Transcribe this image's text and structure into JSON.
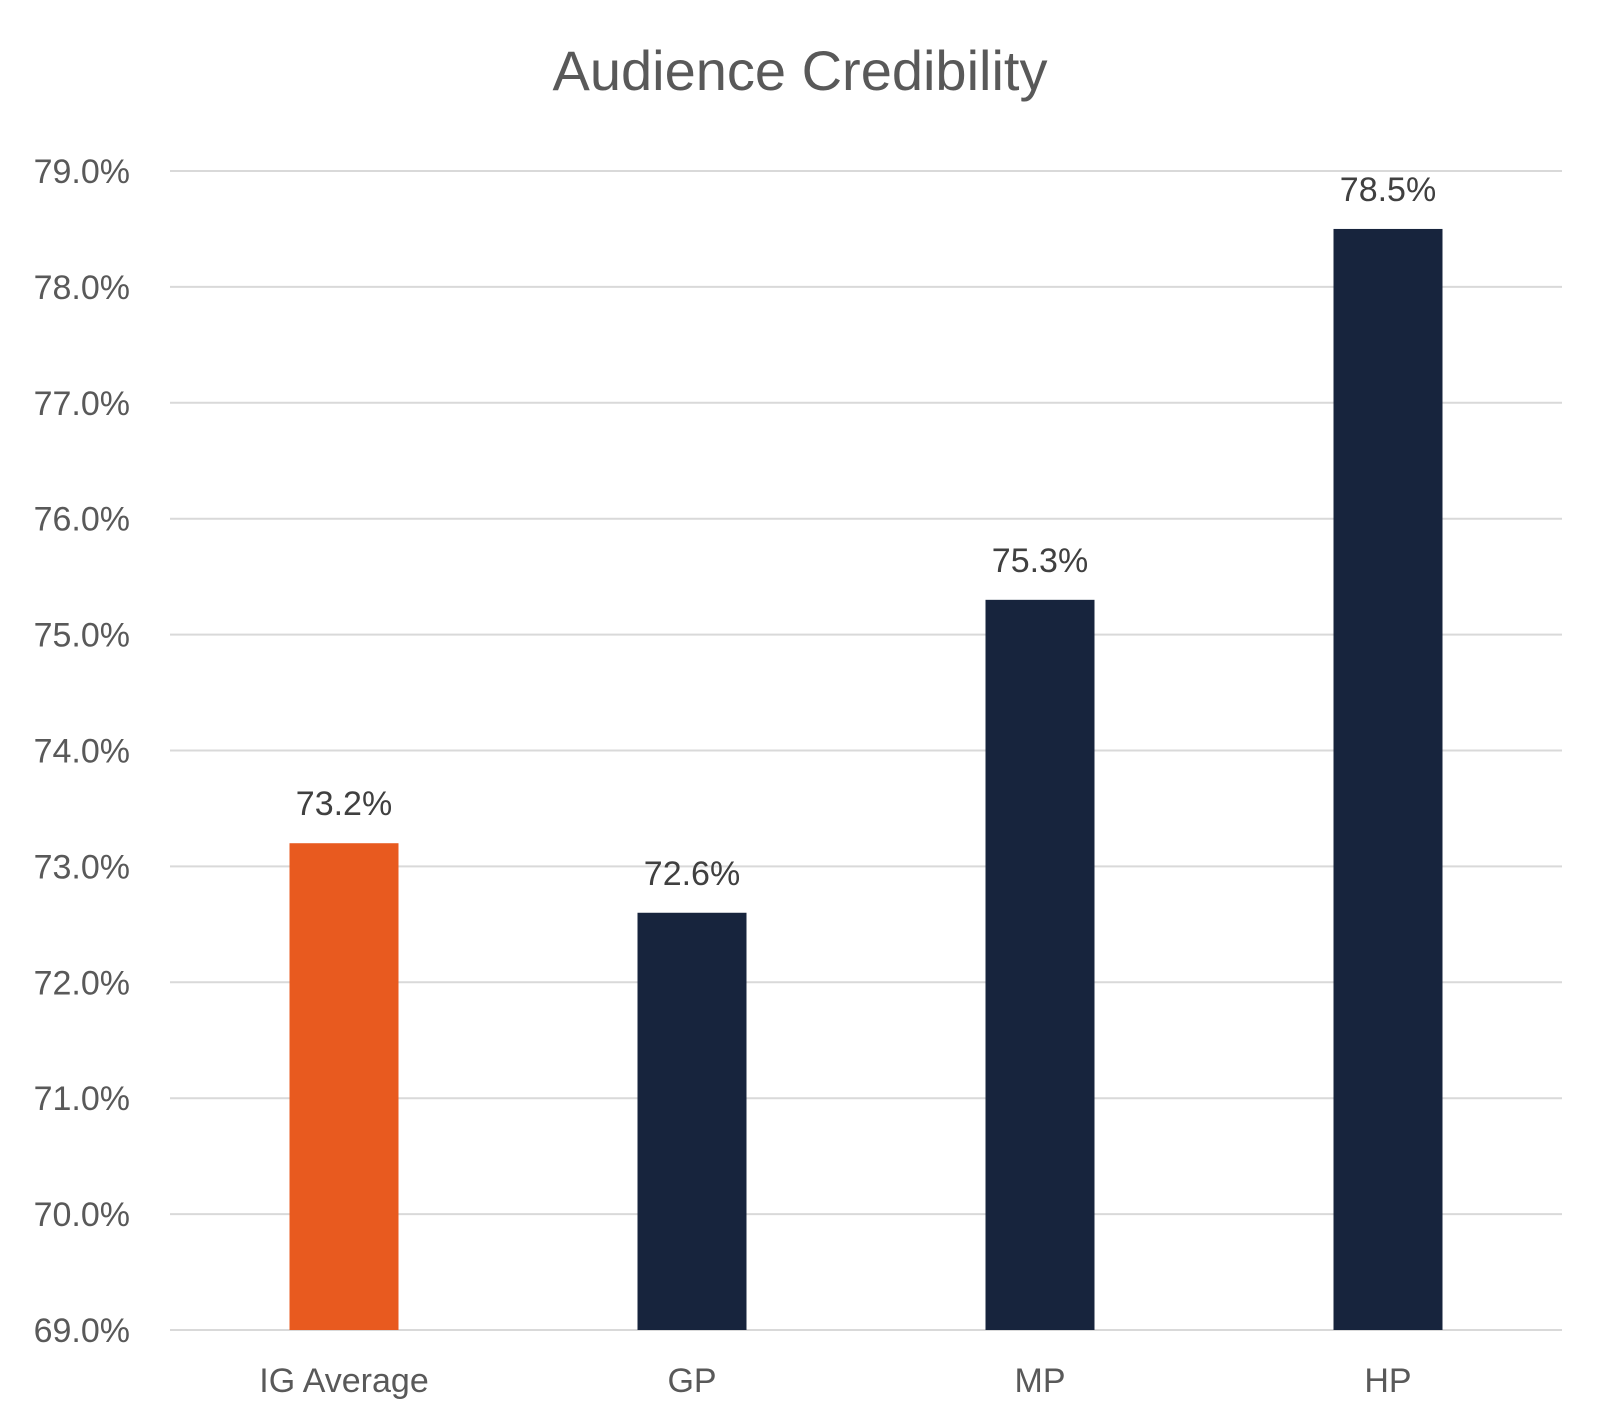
{
  "chart_data": {
    "type": "bar",
    "title": "Audience Credibility",
    "xlabel": "",
    "ylabel": "",
    "categories": [
      "IG Average",
      "GP",
      "MP",
      "HP"
    ],
    "values": [
      73.2,
      72.6,
      75.3,
      78.5
    ],
    "data_labels": [
      "73.2%",
      "72.6%",
      "75.3%",
      "78.5%"
    ],
    "bar_colors": [
      "#e85a1f",
      "#17243d",
      "#17243d",
      "#17243d"
    ],
    "ylim": [
      69.0,
      79.0
    ],
    "yticks": [
      69.0,
      70.0,
      71.0,
      72.0,
      73.0,
      74.0,
      75.0,
      76.0,
      77.0,
      78.0,
      79.0
    ],
    "ytick_labels": [
      "69.0%",
      "70.0%",
      "71.0%",
      "72.0%",
      "73.0%",
      "74.0%",
      "75.0%",
      "76.0%",
      "77.0%",
      "78.0%",
      "79.0%"
    ],
    "grid": true,
    "legend": "none"
  }
}
